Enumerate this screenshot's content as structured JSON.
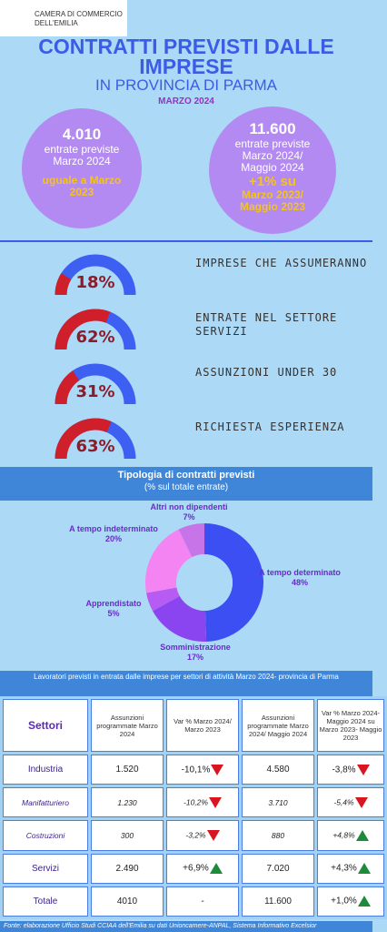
{
  "header": {
    "logo": "CAMERA DI COMMERCIO DELL'EMILIA",
    "title": "CONTRATTI PREVISTI DALLE IMPRESE",
    "subtitle": "IN PROVINCIA DI PARMA",
    "period": "MARZO 2024"
  },
  "summary": [
    {
      "value": "4.010",
      "label": "entrate previste Marzo 2024",
      "comparison": "uguale a Marzo 2023"
    },
    {
      "value": "11.600",
      "label": "entrate previste Marzo 2024/ Maggio 2024",
      "change": "+1% su",
      "comparison": "Marzo 2023/ Maggio 2023"
    }
  ],
  "chart_data": [
    {
      "type": "gauge",
      "categories": [
        "IMPRESE CHE ASSUMERANNO",
        "ENTRATE NEL SETTORE SERVIZI",
        "ASSUNZIONI UNDER 30",
        "RICHIESTA ESPERIENZA"
      ],
      "values": [
        18,
        62,
        31,
        63
      ],
      "value_labels": [
        "18%",
        "62%",
        "31%",
        "63%"
      ],
      "ylim": [
        0,
        100
      ],
      "color": "#cf1f2b",
      "track_color": "#3d5ff2"
    },
    {
      "type": "pie",
      "title": "Tipologia di contratti previsti",
      "subtitle": "(% sul totale entrate)",
      "categories": [
        "A tempo determinato",
        "Somministrazione",
        "Apprendistato",
        "A tempo indeterminato",
        "Altri non dipendenti"
      ],
      "values": [
        48,
        17,
        5,
        20,
        7
      ],
      "value_labels": [
        "48%",
        "17%",
        "5%",
        "20%",
        "7%"
      ],
      "colors": [
        "#3b4ff2",
        "#8b45f0",
        "#b65cf2",
        "#f384f2",
        "#c774e8"
      ]
    }
  ],
  "table": {
    "title": "Lavoratori previsti in entrata dalle imprese per settori di attività Marzo 2024- provincia di Parma",
    "header": [
      "Settori",
      "Assunzioni programmate Marzo 2024",
      "Var % Marzo 2024/ Marzo 2023",
      "Assunzioni programmate Marzo 2024/ Maggio 2024",
      "Var % Marzo 2024- Maggio 2024 su Marzo 2023- Maggio 2023"
    ],
    "rows": [
      [
        "Industria",
        "1.520",
        "-10,1%",
        "4.580",
        "-3,8%"
      ],
      [
        "Manifatturiero",
        "1.230",
        "-10,2%",
        "3.710",
        "-5,4%"
      ],
      [
        "Costruzioni",
        "300",
        "-3,2%",
        "880",
        "+4,8%"
      ],
      [
        "Servizi",
        "2.490",
        "+6,9%",
        "7.020",
        "+4,3%"
      ],
      [
        "Totale",
        "4010",
        "-",
        "11.600",
        "+1,0%"
      ]
    ]
  },
  "footer": "Fonte: elaborazione Ufficio Studi CCIAA dell'Emilia su dati Unioncamere-ANPAL, Sistema Informativo Excelsior"
}
